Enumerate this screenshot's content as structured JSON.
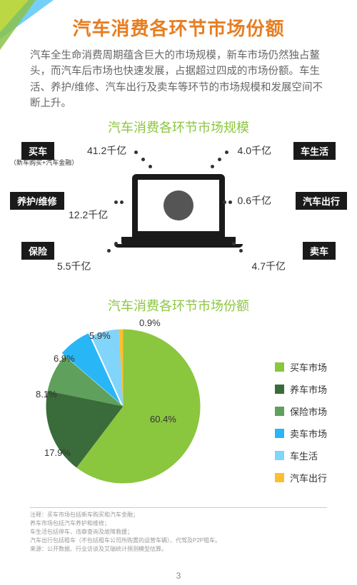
{
  "title": "汽车消费各环节市场份额",
  "intro": "汽车全生命消费周期蕴含巨大的市场规模，新车市场仍然独占鳌头，而汽车后市场也快速发展，占据超过四成的市场份额。车生活、养护/维修、汽车出行及卖车等环节的市场规模和发展空间不断上升。",
  "section1_title": "汽车消费各环节市场规模",
  "section2_title": "汽车消费各环节市场份额",
  "page_number": "3",
  "diagram": {
    "left": [
      {
        "label": "买车",
        "sub": "（新车购买+汽车金融）",
        "value": "41.2千亿"
      },
      {
        "label": "养护/维修",
        "value": "12.2千亿"
      },
      {
        "label": "保险",
        "value": "5.5千亿"
      }
    ],
    "right": [
      {
        "label": "车生活",
        "value": "4.0千亿"
      },
      {
        "label": "汽车出行",
        "value": "0.6千亿"
      },
      {
        "label": "卖车",
        "value": "4.7千亿"
      }
    ]
  },
  "pie": {
    "type": "pie",
    "background_color": "#ffffff",
    "slices": [
      {
        "name": "买车市场",
        "value": 60.4,
        "label": "60.4%",
        "color": "#8bc63f"
      },
      {
        "name": "养车市场",
        "value": 17.9,
        "label": "17.9%",
        "color": "#3a6b3a"
      },
      {
        "name": "保险市场",
        "value": 8.1,
        "label": "8.1%",
        "color": "#5ea05c"
      },
      {
        "name": "卖车市场",
        "value": 6.9,
        "label": "6.9%",
        "color": "#29b6f6",
        "exploded": true
      },
      {
        "name": "车生活",
        "value": 5.9,
        "label": "5.9%",
        "color": "#81d4fa"
      },
      {
        "name": "汽车出行",
        "value": 0.9,
        "label": "0.9%",
        "color": "#fbc02d"
      }
    ],
    "label_fontsize": 13,
    "start_angle_deg": 90
  },
  "footnotes": [
    "注释：买车市场包括新车购买和汽车金融；",
    "养车市场包括汽车养护和维修；",
    "车生活包括停车、违章查询及故障救援；",
    "汽车出行包括租车（不包括租车公司所购置的运营车辆）、代驾及P2P租车。",
    "来源：公开数据、行业访谈及艾瑞统计预测模型估算。"
  ],
  "colors": {
    "accent_orange": "#e67e22",
    "accent_green": "#8bc63f",
    "badge_bg": "#1a1a1a",
    "text_body": "#666666"
  }
}
